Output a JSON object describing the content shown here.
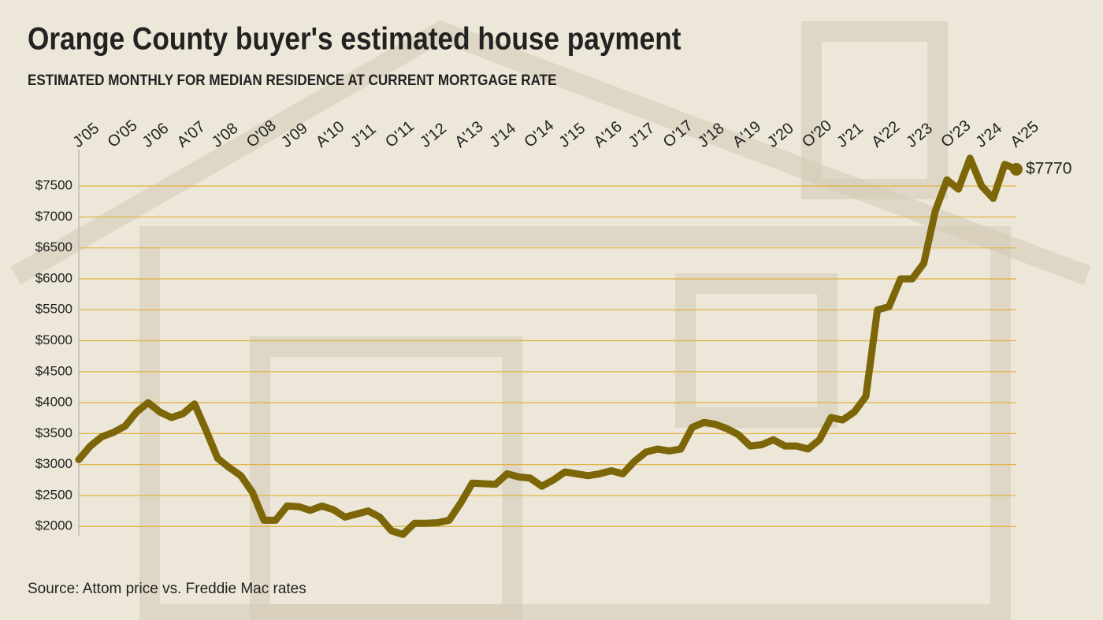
{
  "chart_data": {
    "type": "line",
    "title": "Orange County buyer's estimated house payment",
    "subtitle": "ESTIMATED MONTHLY FOR MEDIAN RESIDENCE AT CURRENT MORTGAGE RATE",
    "source": "Source: Attom price vs. Freddie Mac rates",
    "categories": [
      "J'05",
      null,
      null,
      "O'05",
      null,
      null,
      "J'06",
      null,
      null,
      "A'07",
      null,
      null,
      "J'08",
      null,
      null,
      "O'08",
      null,
      null,
      "J'09",
      null,
      null,
      "A'10",
      null,
      null,
      "J'11",
      null,
      null,
      "O'11",
      null,
      null,
      "J'12",
      null,
      null,
      "A'13",
      null,
      null,
      "J'14",
      null,
      null,
      "O'14",
      null,
      null,
      "J'15",
      null,
      null,
      "A'16",
      null,
      null,
      "J'17",
      null,
      null,
      "O'17",
      null,
      null,
      "J'18",
      null,
      null,
      "A'19",
      null,
      null,
      "J'20",
      null,
      null,
      "O'20",
      null,
      null,
      "J'21",
      null,
      null,
      "A'22",
      null,
      null,
      "J'23",
      null,
      null,
      "O'23",
      null,
      null,
      "J'24",
      null,
      null,
      "A'25"
    ],
    "series": [
      {
        "color": "#7d6608",
        "values": [
          3080,
          3300,
          3450,
          3520,
          3620,
          3850,
          4000,
          3850,
          3760,
          3820,
          3980,
          3550,
          3100,
          2950,
          2820,
          2550,
          2100,
          2100,
          2330,
          2320,
          2260,
          2330,
          2270,
          2150,
          2200,
          2250,
          2150,
          1930,
          1870,
          2050,
          2050,
          2060,
          2100,
          2380,
          2700,
          2690,
          2680,
          2850,
          2800,
          2780,
          2650,
          2750,
          2880,
          2850,
          2820,
          2850,
          2900,
          2850,
          3050,
          3200,
          3250,
          3220,
          3250,
          3600,
          3680,
          3650,
          3580,
          3480,
          3300,
          3320,
          3400,
          3300,
          3300,
          3250,
          3400,
          3760,
          3720,
          3850,
          4100,
          5500,
          5550,
          6000,
          6000,
          6250,
          7100,
          7600,
          7450,
          7950,
          7500,
          7300,
          7850,
          7770
        ],
        "value_labels": [
          null,
          null,
          null,
          null,
          null,
          null,
          null,
          null,
          null,
          null,
          null,
          null,
          null,
          null,
          null,
          null,
          null,
          null,
          null,
          null,
          null,
          null,
          null,
          null,
          null,
          null,
          null,
          null,
          null,
          null,
          null,
          null,
          null,
          null,
          null,
          null,
          null,
          null,
          null,
          null,
          null,
          null,
          null,
          null,
          null,
          null,
          null,
          null,
          null,
          null,
          null,
          null,
          null,
          null,
          null,
          null,
          null,
          null,
          null,
          null,
          null,
          null,
          null,
          null,
          null,
          null,
          null,
          null,
          null,
          null,
          null,
          null,
          null,
          null,
          null,
          null,
          null,
          null,
          null,
          null,
          null,
          "$7770"
        ]
      }
    ],
    "ylim": [
      1850,
      8100
    ],
    "yticks": [
      {
        "value": 2000,
        "label": "$2000"
      },
      {
        "value": 2500,
        "label": "$2500"
      },
      {
        "value": 3000,
        "label": "$3000"
      },
      {
        "value": 3500,
        "label": "$3500"
      },
      {
        "value": 4000,
        "label": "$4000"
      },
      {
        "value": 4500,
        "label": "$4500"
      },
      {
        "value": 5000,
        "label": "$5000"
      },
      {
        "value": 5500,
        "label": "$5500"
      },
      {
        "value": 6000,
        "label": "$6000"
      },
      {
        "value": 6500,
        "label": "$6500"
      },
      {
        "value": 7000,
        "label": "$7000"
      },
      {
        "value": 7500,
        "label": "$7500"
      }
    ],
    "grid": true
  }
}
